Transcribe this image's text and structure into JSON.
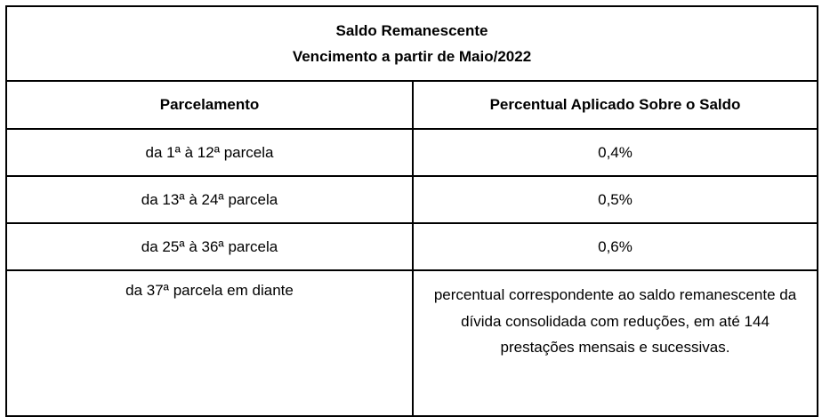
{
  "title": {
    "line1": "Saldo Remanescente",
    "line2": "Vencimento a partir de Maio/2022"
  },
  "headers": {
    "col1": "Parcelamento",
    "col2": "Percentual Aplicado Sobre o Saldo"
  },
  "rows": [
    {
      "range": "da 1ª à 12ª parcela",
      "percent": "0,4%"
    },
    {
      "range": "da 13ª à 24ª parcela",
      "percent": "0,5%"
    },
    {
      "range": "da 25ª à 36ª parcela",
      "percent": "0,6%"
    },
    {
      "range": "da 37ª parcela em diante",
      "percent": "percentual correspondente ao saldo remanescente da dívida consolidada com reduções, em até 144 prestações mensais e sucessivas."
    }
  ]
}
